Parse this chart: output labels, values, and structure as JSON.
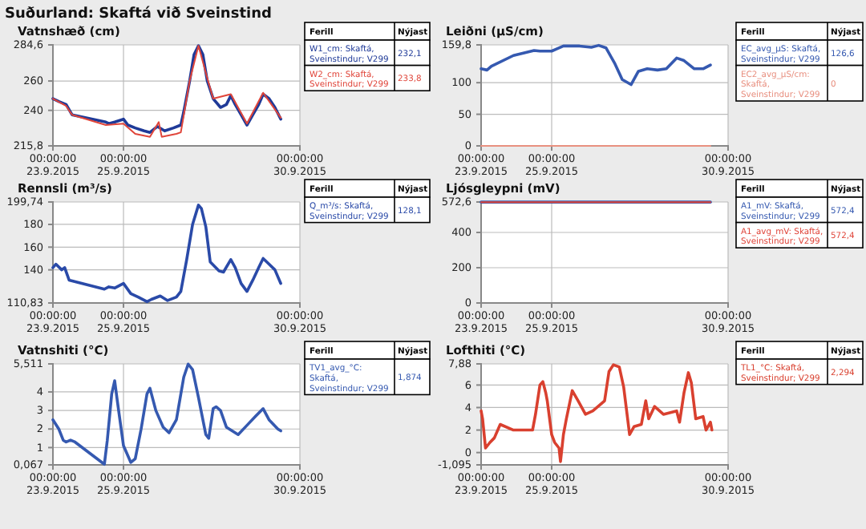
{
  "chart_data": [
    {
      "type": "line",
      "title": "Suðurland: Skaftá við Sveinstind",
      "ylabel": "Vatnshæð (cm)",
      "legend_title": "Ferill",
      "annotations": [
        "Nýjast",
        "232,1",
        "233,8"
      ],
      "legend": "right",
      "grid": true,
      "xlim": [
        "2015-09-23T00:00",
        "2015-09-30T00:00"
      ],
      "xticks": [
        {
          "value": "2015-09-23T00:00",
          "label": "00:00:00\n23.9.2015"
        },
        {
          "value": "2015-09-25T00:00",
          "label": "00:00:00\n25.9.2015"
        },
        {
          "value": "2015-09-30T00:00",
          "label": "00:00:00\n30.9.2015"
        }
      ],
      "ylim": [
        215.8,
        284.6
      ],
      "yticks": [
        {
          "value": 215.8,
          "label": "215,8"
        },
        240,
        260,
        {
          "value": 284.6,
          "label": "284,6"
        }
      ],
      "series": [
        {
          "name": "W1_cm: Skaftá, Sveinstindur; V299",
          "color": "#1f3a98",
          "x": [
            "2015-09-23T00:00",
            "2015-09-23T04:00",
            "2015-09-23T09:00",
            "2015-09-23T13:00",
            "2015-09-24T12:00",
            "2015-09-24T14:00",
            "2015-09-24T18:00",
            "2015-09-25T00:00",
            "2015-09-25T03:00",
            "2015-09-25T08:00",
            "2015-09-25T14:00",
            "2015-09-25T18:00",
            "2015-09-25T23:00",
            "2015-09-26T04:00",
            "2015-09-26T10:00",
            "2015-09-26T15:00",
            "2015-09-26T17:00",
            "2015-09-26T21:00",
            "2015-09-27T00:00",
            "2015-09-27T03:00",
            "2015-09-27T06:00",
            "2015-09-27T09:00",
            "2015-09-27T13:00",
            "2015-09-27T18:00",
            "2015-09-27T22:00",
            "2015-09-28T01:00",
            "2015-09-28T04:00",
            "2015-09-28T08:00",
            "2015-09-28T12:00",
            "2015-09-28T16:00",
            "2015-09-28T20:00",
            "2015-09-28T23:00",
            "2015-09-29T03:00",
            "2015-09-29T07:00",
            "2015-09-29T11:00"
          ],
          "values": [
            248,
            246,
            244,
            237,
            232,
            231,
            232,
            234,
            230,
            228,
            226,
            225,
            229,
            226,
            228,
            230,
            239,
            260,
            278,
            284,
            278,
            260,
            248,
            242,
            244,
            250,
            244,
            237,
            230,
            237,
            244,
            251,
            248,
            242,
            234
          ]
        },
        {
          "name": "W2_cm: Skaftá, Sveinstindur; V299",
          "color": "#e0453a",
          "x": [
            "2015-09-23T00:00",
            "2015-09-23T09:00",
            "2015-09-23T13:00",
            "2015-09-24T12:00",
            "2015-09-25T00:00",
            "2015-09-25T08:00",
            "2015-09-25T18:00",
            "2015-09-26T00:00",
            "2015-09-26T02:00",
            "2015-09-26T12:00",
            "2015-09-26T15:00",
            "2015-09-26T21:00",
            "2015-09-27T03:00",
            "2015-09-27T09:00",
            "2015-09-27T13:00",
            "2015-09-28T01:00",
            "2015-09-28T12:00",
            "2015-09-28T23:00",
            "2015-09-29T11:00"
          ],
          "values": [
            248,
            243,
            237,
            230,
            231,
            224,
            222,
            232,
            222,
            224,
            225,
            260,
            284,
            262,
            248,
            251,
            231,
            252,
            235
          ]
        }
      ]
    },
    {
      "type": "line",
      "ylabel": "Leiðni (µS/cm)",
      "legend_title": "Ferill",
      "annotations": [
        "Nýjast",
        "126,6",
        "0"
      ],
      "legend": "right",
      "grid": true,
      "xlim": [
        "2015-09-23T00:00",
        "2015-09-30T00:00"
      ],
      "xticks": [
        {
          "value": "2015-09-23T00:00",
          "label": "00:00:00\n23.9.2015"
        },
        {
          "value": "2015-09-25T00:00",
          "label": "00:00:00\n25.9.2015"
        },
        {
          "value": "2015-09-30T00:00",
          "label": "00:00:00\n30.9.2015"
        }
      ],
      "ylim": [
        0,
        159.8
      ],
      "yticks": [
        0,
        50,
        100,
        {
          "value": 159.8,
          "label": "159,8"
        }
      ],
      "series": [
        {
          "name": "EC_avg_µS: Skaftá, Sveinstindur; V299",
          "color": "#3559b0",
          "x": [
            "2015-09-23T00:00",
            "2015-09-23T04:00",
            "2015-09-23T07:00",
            "2015-09-23T22:00",
            "2015-09-24T12:00",
            "2015-09-24T16:00",
            "2015-09-25T00:00",
            "2015-09-25T03:00",
            "2015-09-25T08:00",
            "2015-09-25T19:00",
            "2015-09-26T03:00",
            "2015-09-26T08:00",
            "2015-09-26T13:00",
            "2015-09-26T19:00",
            "2015-09-27T00:00",
            "2015-09-27T06:00",
            "2015-09-27T11:00",
            "2015-09-27T17:00",
            "2015-09-28T00:00",
            "2015-09-28T06:00",
            "2015-09-28T13:00",
            "2015-09-28T18:00",
            "2015-09-29T01:00",
            "2015-09-29T07:00",
            "2015-09-29T12:00"
          ],
          "values": [
            122,
            120,
            126,
            143,
            151,
            150,
            150,
            153,
            158,
            158,
            156,
            159,
            155,
            130,
            105,
            97,
            118,
            122,
            120,
            122,
            139,
            135,
            122,
            122,
            128
          ]
        },
        {
          "name": "EC2_avg_µS/cm: Skaftá, Sveinstindur; V299",
          "color": "#e89080",
          "x": [
            "2015-09-23T00:00",
            "2015-09-29T12:00"
          ],
          "values": [
            0,
            0
          ]
        }
      ]
    },
    {
      "type": "line",
      "ylabel": "Rennsli (m³/s)",
      "legend_title": "Ferill",
      "annotations": [
        "Nýjast",
        "128,1"
      ],
      "legend": "right",
      "grid": true,
      "xlim": [
        "2015-09-23T00:00",
        "2015-09-30T00:00"
      ],
      "xticks": [
        {
          "value": "2015-09-23T00:00",
          "label": "00:00:00\n23.9.2015"
        },
        {
          "value": "2015-09-25T00:00",
          "label": "00:00:00\n25.9.2015"
        },
        {
          "value": "2015-09-30T00:00",
          "label": "00:00:00\n30.9.2015"
        }
      ],
      "ylim": [
        110.83,
        199.74
      ],
      "yticks": [
        {
          "value": 110.83,
          "label": "110,83"
        },
        140,
        160,
        180,
        {
          "value": 199.74,
          "label": "199,74"
        }
      ],
      "series": [
        {
          "name": "Q_m³/s: Skaftá, Sveinstindur; V299",
          "color": "#2a4aa8",
          "x": [
            "2015-09-23T00:00",
            "2015-09-23T02:00",
            "2015-09-23T06:00",
            "2015-09-23T08:00",
            "2015-09-23T11:00",
            "2015-09-24T11:00",
            "2015-09-24T14:00",
            "2015-09-24T18:00",
            "2015-09-25T00:00",
            "2015-09-25T05:00",
            "2015-09-25T10:00",
            "2015-09-25T16:00",
            "2015-09-25T19:00",
            "2015-09-26T01:00",
            "2015-09-26T06:00",
            "2015-09-26T12:00",
            "2015-09-26T15:00",
            "2015-09-26T19:00",
            "2015-09-26T23:00",
            "2015-09-27T03:00",
            "2015-09-27T05:00",
            "2015-09-27T08:00",
            "2015-09-27T11:00",
            "2015-09-27T17:00",
            "2015-09-27T20:00",
            "2015-09-28T01:00",
            "2015-09-28T04:00",
            "2015-09-28T08:00",
            "2015-09-28T12:00",
            "2015-09-28T16:00",
            "2015-09-28T20:00",
            "2015-09-28T23:00",
            "2015-09-29T03:00",
            "2015-09-29T07:00",
            "2015-09-29T11:00"
          ],
          "values": [
            142,
            145,
            140,
            142,
            131,
            123,
            125,
            124,
            128,
            119,
            116,
            112,
            114,
            117,
            113,
            116,
            121,
            149,
            180,
            197,
            194,
            178,
            147,
            139,
            138,
            149,
            142,
            128,
            121,
            131,
            142,
            150,
            145,
            140,
            128
          ]
        }
      ]
    },
    {
      "type": "line",
      "ylabel": "Ljósgleypni (mV)",
      "legend_title": "Ferill",
      "annotations": [
        "Nýjast",
        "572,4",
        "572,4"
      ],
      "legend": "right",
      "grid": true,
      "xlim": [
        "2015-09-23T00:00",
        "2015-09-30T00:00"
      ],
      "xticks": [
        {
          "value": "2015-09-23T00:00",
          "label": "00:00:00\n23.9.2015"
        },
        {
          "value": "2015-09-25T00:00",
          "label": "00:00:00\n25.9.2015"
        },
        {
          "value": "2015-09-30T00:00",
          "label": "00:00:00\n30.9.2015"
        }
      ],
      "ylim": [
        0,
        572.6
      ],
      "yticks": [
        0,
        200,
        400,
        {
          "value": 572.6,
          "label": "572,6"
        }
      ],
      "series": [
        {
          "name": "A1_mV: Skaftá, Sveinstindur; V299",
          "color": "#3559b0",
          "x": [
            "2015-09-23T00:00",
            "2015-09-29T12:00"
          ],
          "values": [
            572,
            572
          ]
        },
        {
          "name": "A1_avg_mV: Skaftá, Sveinstindur; V299",
          "color": "#e0453a",
          "x": [
            "2015-09-23T00:00",
            "2015-09-29T12:00"
          ],
          "values": [
            572,
            572
          ]
        }
      ]
    },
    {
      "type": "line",
      "ylabel": "Vatnshiti (°C)",
      "legend_title": "Ferill",
      "annotations": [
        "Nýjast",
        "1,874"
      ],
      "legend": "right",
      "grid": true,
      "xlim": [
        "2015-09-23T00:00",
        "2015-09-30T00:00"
      ],
      "xticks": [
        {
          "value": "2015-09-23T00:00",
          "label": "00:00:00\n23.9.2015"
        },
        {
          "value": "2015-09-25T00:00",
          "label": "00:00:00\n25.9.2015"
        },
        {
          "value": "2015-09-30T00:00",
          "label": "00:00:00\n30.9.2015"
        }
      ],
      "ylim": [
        0.067,
        5.511
      ],
      "yticks": [
        {
          "value": 0.067,
          "label": "0,067"
        },
        1,
        2,
        3,
        4,
        {
          "value": 5.511,
          "label": "5,511"
        }
      ],
      "series": [
        {
          "name": "TV1_avg_°C: Skaftá, Sveinstindur; V299",
          "color": "#3559b0",
          "x": [
            "2015-09-23T00:00",
            "2015-09-23T04:00",
            "2015-09-23T07:00",
            "2015-09-23T09:00",
            "2015-09-23T12:00",
            "2015-09-23T15:00",
            "2015-09-24T11:00",
            "2015-09-24T13:00",
            "2015-09-24T16:00",
            "2015-09-24T18:00",
            "2015-09-24T20:00",
            "2015-09-25T00:00",
            "2015-09-25T05:00",
            "2015-09-25T08:00",
            "2015-09-25T12:00",
            "2015-09-25T16:00",
            "2015-09-25T18:00",
            "2015-09-25T22:00",
            "2015-09-26T03:00",
            "2015-09-26T07:00",
            "2015-09-26T12:00",
            "2015-09-26T17:00",
            "2015-09-26T20:00",
            "2015-09-26T23:00",
            "2015-09-27T03:00",
            "2015-09-27T08:00",
            "2015-09-27T10:00",
            "2015-09-27T13:00",
            "2015-09-27T15:00",
            "2015-09-27T18:00",
            "2015-09-27T22:00",
            "2015-09-28T06:00",
            "2015-09-28T12:00",
            "2015-09-28T18:00",
            "2015-09-28T23:00",
            "2015-09-29T03:00",
            "2015-09-29T09:00",
            "2015-09-29T11:00"
          ],
          "values": [
            2.5,
            2,
            1.4,
            1.3,
            1.4,
            1.3,
            0.1,
            1.4,
            3.9,
            4.6,
            3.4,
            1.1,
            0.2,
            0.4,
            2,
            3.9,
            4.2,
            3,
            2.1,
            1.8,
            2.5,
            4.8,
            5.5,
            5.2,
            3.7,
            1.7,
            1.5,
            3.1,
            3.2,
            3,
            2.1,
            1.7,
            2.2,
            2.7,
            3.1,
            2.5,
            2,
            1.9
          ]
        }
      ]
    },
    {
      "type": "line",
      "ylabel": "Lofthiti (°C)",
      "legend_title": "Ferill",
      "annotations": [
        "Nýjast",
        "2,294"
      ],
      "legend": "right",
      "grid": true,
      "xlim": [
        "2015-09-23T00:00",
        "2015-09-30T00:00"
      ],
      "xticks": [
        {
          "value": "2015-09-23T00:00",
          "label": "00:00:00\n23.9.2015"
        },
        {
          "value": "2015-09-25T00:00",
          "label": "00:00:00\n25.9.2015"
        },
        {
          "value": "2015-09-30T00:00",
          "label": "00:00:00\n30.9.2015"
        }
      ],
      "ylim": [
        -1.095,
        7.88
      ],
      "yticks": [
        {
          "value": -1.095,
          "label": "-1,095"
        },
        0,
        2,
        4,
        6,
        {
          "value": 7.88,
          "label": "7,88"
        }
      ],
      "series": [
        {
          "name": "TL1_°C: Skaftá, Sveinstindur; V299",
          "color": "#d9402f",
          "x": [
            "2015-09-23T00:00",
            "2015-09-23T01:00",
            "2015-09-23T03:00",
            "2015-09-23T06:00",
            "2015-09-23T09:00",
            "2015-09-23T13:00",
            "2015-09-23T22:00",
            "2015-09-24T11:00",
            "2015-09-24T13:00",
            "2015-09-24T16:00",
            "2015-09-24T18:00",
            "2015-09-24T20:00",
            "2015-09-24T21:00",
            "2015-09-25T00:00",
            "2015-09-25T02:00",
            "2015-09-25T05:00",
            "2015-09-25T06:00",
            "2015-09-25T08:00",
            "2015-09-25T10:00",
            "2015-09-25T14:00",
            "2015-09-25T18:00",
            "2015-09-25T23:00",
            "2015-09-26T04:00",
            "2015-09-26T12:00",
            "2015-09-26T15:00",
            "2015-09-26T18:00",
            "2015-09-26T22:00",
            "2015-09-27T01:00",
            "2015-09-27T05:00",
            "2015-09-27T08:00",
            "2015-09-27T13:00",
            "2015-09-27T16:00",
            "2015-09-27T18:00",
            "2015-09-27T22:00",
            "2015-09-28T04:00",
            "2015-09-28T13:00",
            "2015-09-28T15:00",
            "2015-09-28T18:00",
            "2015-09-28T21:00",
            "2015-09-28T23:00",
            "2015-09-29T02:00",
            "2015-09-29T07:00",
            "2015-09-29T09:00",
            "2015-09-29T12:00",
            "2015-09-29T13:00"
          ],
          "values": [
            3.7,
            3,
            0.4,
            0.9,
            1.3,
            2.5,
            2,
            2,
            3.4,
            6,
            6.3,
            5.3,
            4.6,
            1.6,
            0.9,
            0.4,
            -0.8,
            1.6,
            3,
            5.5,
            4.6,
            3.4,
            3.7,
            4.6,
            7.2,
            7.8,
            7.6,
            5.8,
            1.6,
            2.3,
            2.5,
            4.6,
            3,
            4.1,
            3.4,
            3.7,
            2.7,
            5.3,
            7.1,
            6.2,
            3,
            3.2,
            2,
            2.7,
            2
          ]
        }
      ]
    }
  ]
}
